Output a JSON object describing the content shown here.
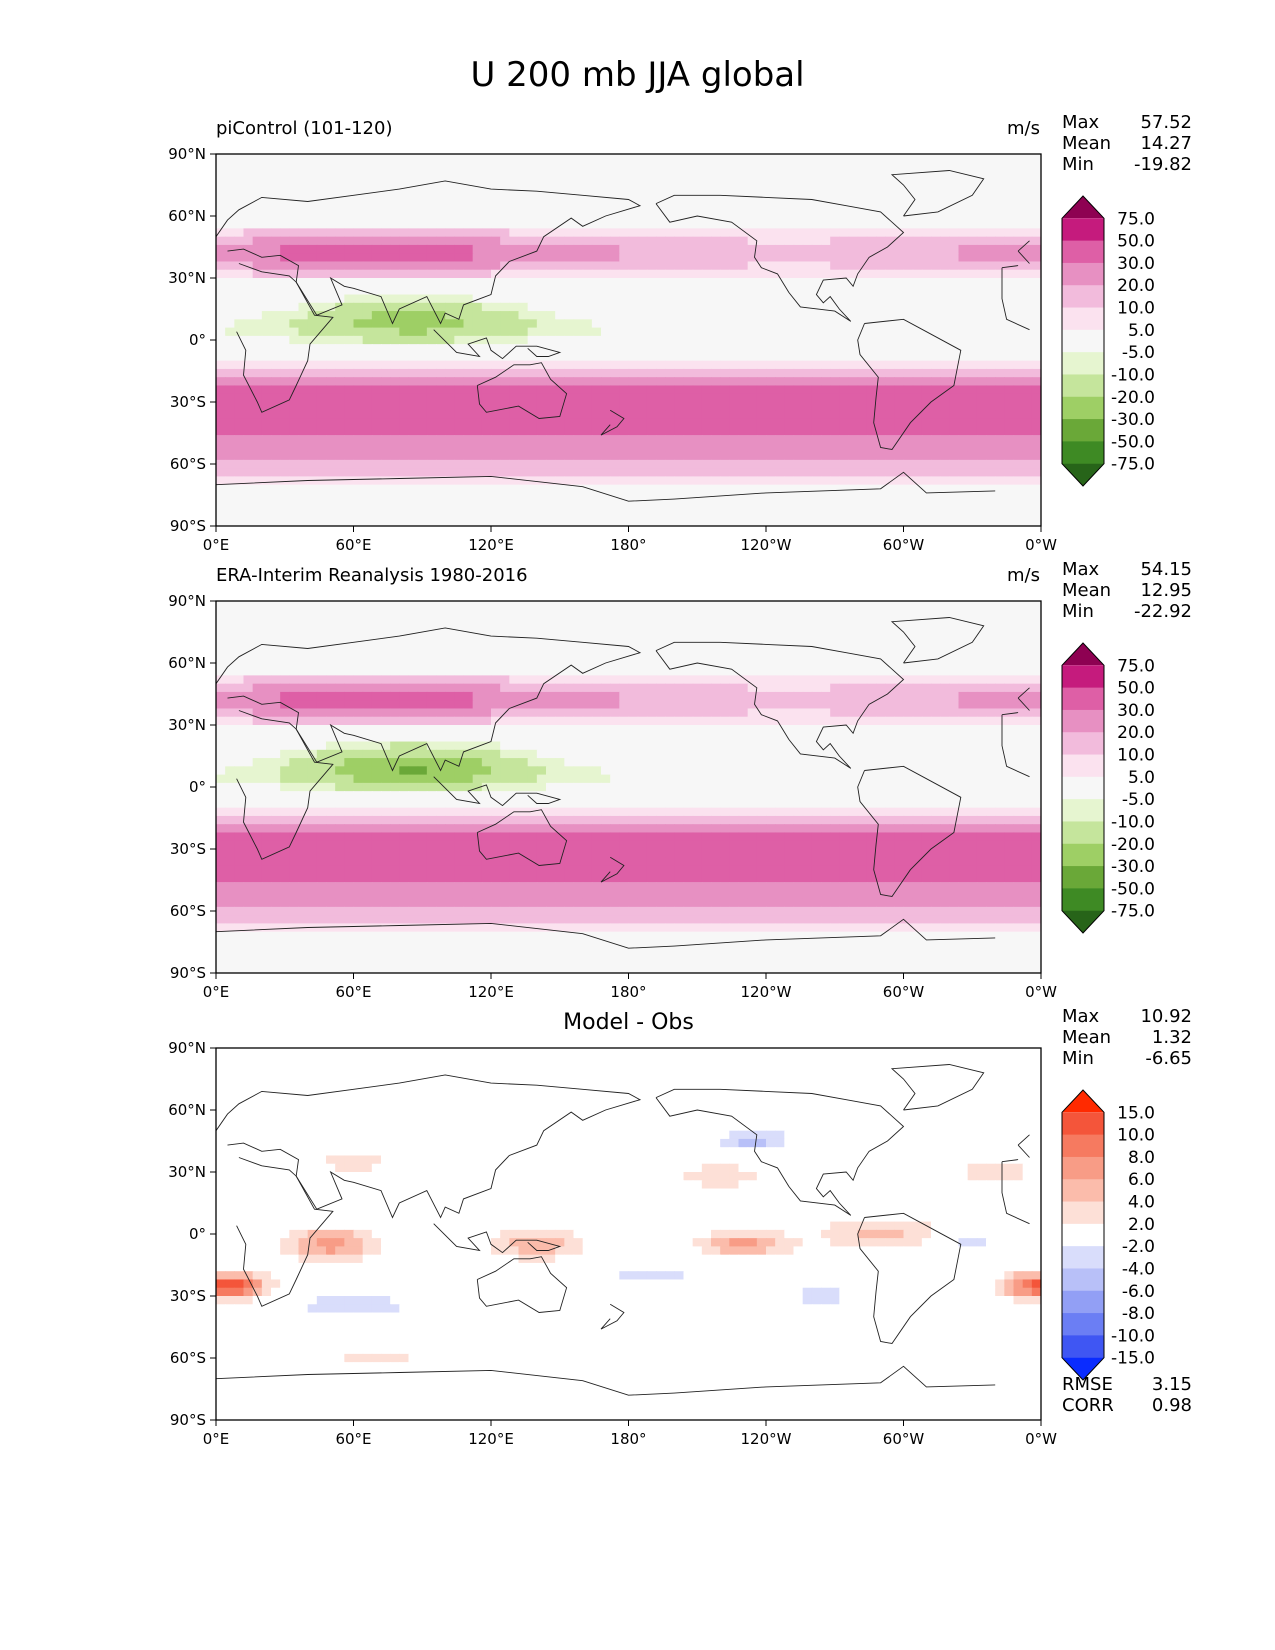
{
  "title": "U 200 mb JJA global",
  "chart_data": [
    {
      "type": "heatmap",
      "title": "piControl (101-120)",
      "units": "m/s",
      "stats": [
        {
          "label": "Max",
          "value": "57.52"
        },
        {
          "label": "Mean",
          "value": "14.27"
        },
        {
          "label": "Min",
          "value": "-19.82"
        }
      ],
      "x_ticks": [
        "0°E",
        "60°E",
        "120°E",
        "180°",
        "120°W",
        "60°W",
        "0°W"
      ],
      "y_ticks": [
        "90°N",
        "60°N",
        "30°N",
        "0°",
        "30°S",
        "60°S",
        "90°S"
      ],
      "colorbar_levels": [
        "75.0",
        "50.0",
        "30.0",
        "20.0",
        "10.0",
        "5.0",
        "-5.0",
        "-10.0",
        "-20.0",
        "-30.0",
        "-50.0",
        "-75.0"
      ],
      "colorbar_colors": [
        "#8e0152",
        "#c51b7d",
        "#de5fa6",
        "#e790c2",
        "#f2bbdc",
        "#fbe2ef",
        "#f7f7f7",
        "#e6f5d0",
        "#c5e59c",
        "#9ecf65",
        "#6aa838",
        "#3e8a24",
        "#276419"
      ]
    },
    {
      "type": "heatmap",
      "title": "ERA-Interim Reanalysis 1980-2016",
      "units": "m/s",
      "stats": [
        {
          "label": "Max",
          "value": "54.15"
        },
        {
          "label": "Mean",
          "value": "12.95"
        },
        {
          "label": "Min",
          "value": "-22.92"
        }
      ],
      "x_ticks": [
        "0°E",
        "60°E",
        "120°E",
        "180°",
        "120°W",
        "60°W",
        "0°W"
      ],
      "y_ticks": [
        "90°N",
        "60°N",
        "30°N",
        "0°",
        "30°S",
        "60°S",
        "90°S"
      ],
      "colorbar_levels": [
        "75.0",
        "50.0",
        "30.0",
        "20.0",
        "10.0",
        "5.0",
        "-5.0",
        "-10.0",
        "-20.0",
        "-30.0",
        "-50.0",
        "-75.0"
      ],
      "colorbar_colors": [
        "#8e0152",
        "#c51b7d",
        "#de5fa6",
        "#e790c2",
        "#f2bbdc",
        "#fbe2ef",
        "#f7f7f7",
        "#e6f5d0",
        "#c5e59c",
        "#9ecf65",
        "#6aa838",
        "#3e8a24",
        "#276419"
      ]
    },
    {
      "type": "heatmap",
      "title": "Model - Obs",
      "units": "",
      "stats": [
        {
          "label": "Max",
          "value": "10.92"
        },
        {
          "label": "Mean",
          "value": "1.32"
        },
        {
          "label": "Min",
          "value": "-6.65"
        }
      ],
      "footer_stats": [
        {
          "label": "RMSE",
          "value": "3.15"
        },
        {
          "label": "CORR",
          "value": "0.98"
        }
      ],
      "x_ticks": [
        "0°E",
        "60°E",
        "120°E",
        "180°",
        "120°W",
        "60°W",
        "0°W"
      ],
      "y_ticks": [
        "90°N",
        "60°N",
        "30°N",
        "0°",
        "30°S",
        "60°S",
        "90°S"
      ],
      "colorbar_levels": [
        "15.0",
        "10.0",
        "8.0",
        "6.0",
        "4.0",
        "2.0",
        "-2.0",
        "-4.0",
        "-6.0",
        "-8.0",
        "-10.0",
        "-15.0"
      ],
      "colorbar_colors": [
        "#ff2a00",
        "#f4553a",
        "#f67a60",
        "#f89c86",
        "#fbbcab",
        "#fde0d7",
        "#ffffff",
        "#d9ddfb",
        "#b8c0f8",
        "#929ff5",
        "#6b7ef4",
        "#3f56f3",
        "#0a2cff"
      ]
    }
  ]
}
